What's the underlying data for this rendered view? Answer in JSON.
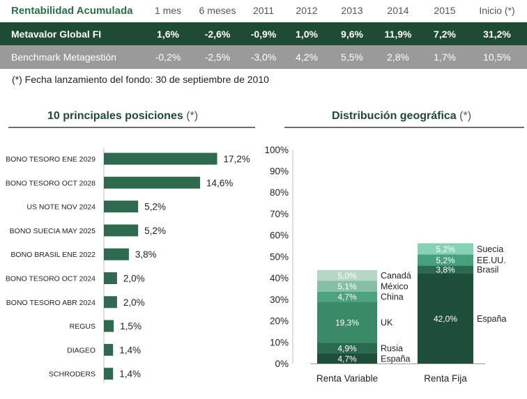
{
  "returns_table": {
    "header": {
      "label": "Rentabilidad Acumulada",
      "periods": [
        "1 mes",
        "6 meses",
        "2011",
        "2012",
        "2013",
        "2014",
        "2015",
        "Inicio (*)"
      ]
    },
    "fund": {
      "name": "Metavalor Global FI",
      "values": [
        "1,6%",
        "-2,6%",
        "-0,9%",
        "1,0%",
        "9,6%",
        "11,9%",
        "7,2%",
        "31,2%"
      ]
    },
    "benchmark": {
      "name": "Benchmark Metagestión",
      "values": [
        "-0,2%",
        "-2,5%",
        "-3,0%",
        "4,2%",
        "5,5%",
        "2,8%",
        "1,7%",
        "10,5%"
      ]
    }
  },
  "footnote": "(*) Fecha lanzamiento del fondo: 30 de septiembre de 2010",
  "chart_data": [
    {
      "type": "bar",
      "orientation": "horizontal",
      "title": "10 principales posiciones",
      "title_marker": "(*)",
      "categories": [
        "BONO TESORO ENE 2029",
        "BONO TESORO OCT 2028",
        "US NOTE NOV 2024",
        "BONO SUECIA MAY 2025",
        "BONO BRASIL ENE 2022",
        "BONO TESORO OCT 2024",
        "BONO TESORO ABR 2024",
        "REGUS",
        "DIAGEO",
        "SCHRODERS"
      ],
      "values": [
        17.2,
        14.6,
        5.2,
        5.2,
        3.8,
        2.0,
        2.0,
        1.5,
        1.4,
        1.4
      ],
      "labels": [
        "17,2%",
        "14,6%",
        "5,2%",
        "5,2%",
        "3,8%",
        "2,0%",
        "2,0%",
        "1,5%",
        "1,4%",
        "1,4%"
      ],
      "color": "#2e6b4e"
    },
    {
      "type": "bar",
      "stacked": true,
      "title": "Distribución geográfica",
      "title_marker": "(*)",
      "categories": [
        "Renta Variable",
        "Renta Fija"
      ],
      "yticks": [
        "0%",
        "10%",
        "20%",
        "30%",
        "40%",
        "50%",
        "60%",
        "70%",
        "80%",
        "90%",
        "100%"
      ],
      "ylim": [
        0,
        100
      ],
      "series": [
        {
          "category": "Renta Variable",
          "segments": [
            {
              "name": "España",
              "value": 4.7,
              "label": "4,7%",
              "color": "#1e4d38"
            },
            {
              "name": "Rusia",
              "value": 4.9,
              "label": "4,9%",
              "color": "#2a6b50"
            },
            {
              "name": "UK",
              "value": 19.3,
              "label": "19,3%",
              "color": "#3a8a68"
            },
            {
              "name": "China",
              "value": 4.7,
              "label": "4,7%",
              "color": "#4da27f"
            },
            {
              "name": "México",
              "value": 5.1,
              "label": "5,1%",
              "color": "#86c0a4"
            },
            {
              "name": "Canadá",
              "value": 5.0,
              "label": "5,0%",
              "color": "#b7d7c6"
            }
          ]
        },
        {
          "category": "Renta Fija",
          "segments": [
            {
              "name": "España",
              "value": 42.0,
              "label": "42,0%",
              "color": "#1e4d38"
            },
            {
              "name": "Brasil",
              "value": 3.8,
              "label": "3,8%",
              "color": "#2a6b50"
            },
            {
              "name": "EE.UU.",
              "value": 5.2,
              "label": "5,2%",
              "color": "#45a17e"
            },
            {
              "name": "Suecia",
              "value": 5.2,
              "label": "5,2%",
              "color": "#86d2b3"
            }
          ]
        }
      ]
    }
  ]
}
